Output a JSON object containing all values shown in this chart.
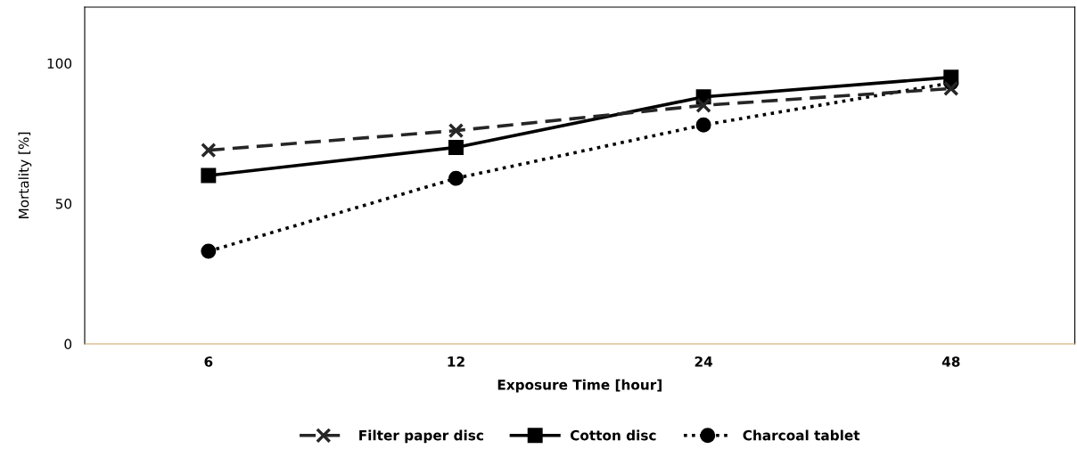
{
  "chart_data": {
    "type": "line",
    "xlabel": "Exposure Time [hour]",
    "ylabel": "Mortality [%]",
    "categories": [
      "6",
      "12",
      "24",
      "48"
    ],
    "series": [
      {
        "name": "Filter paper disc",
        "color": "#262626",
        "values": [
          69,
          76,
          85,
          91
        ],
        "marker": "cross",
        "line_style": "dashed"
      },
      {
        "name": "Cotton disc",
        "color": "#000000",
        "values": [
          60,
          70,
          88,
          95
        ],
        "marker": "square",
        "line_style": "solid"
      },
      {
        "name": "Charcoal tablet",
        "color": "#000000",
        "values": [
          33,
          59,
          78,
          93
        ],
        "marker": "circle",
        "line_style": "dotted"
      }
    ],
    "ylim": [
      0,
      120
    ],
    "yticks": [
      0,
      50,
      100
    ],
    "grid": false,
    "legend": "bottom"
  }
}
